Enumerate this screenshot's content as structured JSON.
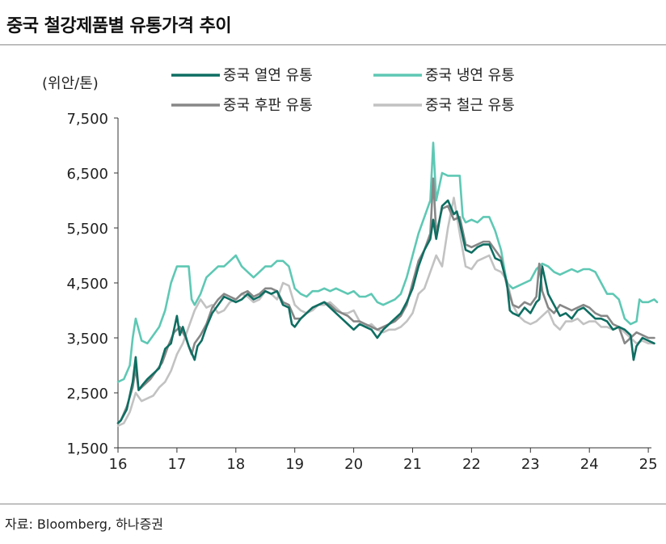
{
  "title": "중국 철강제품별 유통가격 추이",
  "source": "자료: Bloomberg, 하나증권",
  "chart_data": {
    "type": "line",
    "title": "중국 철강제품별 유통가격 추이",
    "ylabel": "(위안/톤)",
    "xlabel": "",
    "ylim": [
      1500,
      7500
    ],
    "yticks": [
      1500,
      2500,
      3500,
      4500,
      5500,
      6500,
      7500
    ],
    "ytick_labels": [
      "1,500",
      "2,500",
      "3,500",
      "4,500",
      "5,500",
      "6,500",
      "7,500"
    ],
    "xlim": [
      16,
      25.15
    ],
    "xticks": [
      16,
      17,
      18,
      19,
      20,
      21,
      22,
      23,
      24,
      25
    ],
    "xtick_labels": [
      "16",
      "17",
      "18",
      "19",
      "20",
      "21",
      "22",
      "23",
      "24",
      "25"
    ],
    "grid": false,
    "legend_position": "top",
    "series": [
      {
        "name": "중국 열연 유통",
        "color": "#0e6e62",
        "x": [
          16.0,
          16.05,
          16.15,
          16.25,
          16.3,
          16.35,
          16.42,
          16.5,
          16.6,
          16.7,
          16.8,
          16.9,
          17.0,
          17.05,
          17.1,
          17.2,
          17.3,
          17.35,
          17.42,
          17.5,
          17.6,
          17.7,
          17.8,
          17.9,
          18.0,
          18.1,
          18.2,
          18.3,
          18.4,
          18.5,
          18.6,
          18.7,
          18.8,
          18.9,
          18.95,
          19.0,
          19.1,
          19.2,
          19.3,
          19.4,
          19.5,
          19.6,
          19.7,
          19.8,
          19.9,
          20.0,
          20.1,
          20.2,
          20.3,
          20.4,
          20.5,
          20.6,
          20.7,
          20.8,
          20.9,
          21.0,
          21.1,
          21.2,
          21.3,
          21.35,
          21.4,
          21.5,
          21.6,
          21.7,
          21.75,
          21.8,
          21.9,
          22.0,
          22.1,
          22.2,
          22.3,
          22.4,
          22.5,
          22.6,
          22.65,
          22.7,
          22.8,
          22.9,
          23.0,
          23.1,
          23.15,
          23.2,
          23.3,
          23.4,
          23.5,
          23.6,
          23.7,
          23.8,
          23.9,
          24.0,
          24.1,
          24.2,
          24.3,
          24.4,
          24.5,
          24.6,
          24.7,
          24.75,
          24.8,
          24.9,
          25.0,
          25.1
        ],
        "y": [
          1950,
          2000,
          2200,
          2700,
          3150,
          2550,
          2650,
          2750,
          2850,
          2950,
          3300,
          3400,
          3900,
          3550,
          3700,
          3350,
          3100,
          3350,
          3450,
          3700,
          3950,
          4100,
          4250,
          4200,
          4150,
          4200,
          4300,
          4200,
          4250,
          4350,
          4300,
          4350,
          4100,
          4050,
          3750,
          3700,
          3850,
          3950,
          4050,
          4100,
          4150,
          4050,
          3950,
          3850,
          3750,
          3650,
          3750,
          3700,
          3650,
          3500,
          3650,
          3750,
          3850,
          3950,
          4150,
          4400,
          4800,
          5100,
          5300,
          5650,
          5300,
          5900,
          6000,
          5750,
          5800,
          5600,
          5100,
          5050,
          5150,
          5200,
          5200,
          4950,
          4900,
          4500,
          4000,
          3950,
          3900,
          4050,
          3950,
          4150,
          4200,
          4800,
          4300,
          4100,
          3900,
          3950,
          3850,
          4000,
          4050,
          3950,
          3850,
          3850,
          3800,
          3650,
          3700,
          3650,
          3550,
          3100,
          3350,
          3500,
          3450,
          3400
        ]
      },
      {
        "name": "중국 냉연 유통",
        "color": "#5ec8b4",
        "x": [
          16.0,
          16.1,
          16.2,
          16.25,
          16.3,
          16.4,
          16.5,
          16.6,
          16.7,
          16.8,
          16.9,
          17.0,
          17.05,
          17.2,
          17.25,
          17.3,
          17.4,
          17.5,
          17.6,
          17.7,
          17.8,
          17.9,
          18.0,
          18.1,
          18.2,
          18.3,
          18.4,
          18.5,
          18.6,
          18.7,
          18.8,
          18.9,
          19.0,
          19.1,
          19.2,
          19.3,
          19.4,
          19.5,
          19.6,
          19.7,
          19.8,
          19.9,
          20.0,
          20.1,
          20.2,
          20.3,
          20.4,
          20.5,
          20.6,
          20.7,
          20.8,
          20.9,
          21.0,
          21.1,
          21.2,
          21.3,
          21.35,
          21.4,
          21.5,
          21.6,
          21.7,
          21.8,
          21.85,
          21.9,
          22.0,
          22.1,
          22.2,
          22.3,
          22.4,
          22.5,
          22.6,
          22.7,
          22.8,
          22.9,
          23.0,
          23.1,
          23.2,
          23.3,
          23.4,
          23.5,
          23.6,
          23.7,
          23.8,
          23.9,
          24.0,
          24.1,
          24.2,
          24.3,
          24.4,
          24.5,
          24.6,
          24.7,
          24.8,
          24.85,
          24.9,
          25.0,
          25.1,
          25.15
        ],
        "y": [
          2700,
          2750,
          3000,
          3500,
          3850,
          3450,
          3400,
          3550,
          3700,
          4000,
          4500,
          4800,
          4800,
          4800,
          4200,
          4100,
          4300,
          4600,
          4700,
          4800,
          4800,
          4900,
          5000,
          4800,
          4700,
          4600,
          4700,
          4800,
          4800,
          4900,
          4900,
          4800,
          4400,
          4300,
          4250,
          4350,
          4350,
          4400,
          4350,
          4400,
          4350,
          4300,
          4350,
          4250,
          4250,
          4300,
          4150,
          4100,
          4150,
          4200,
          4300,
          4600,
          5000,
          5400,
          5700,
          6000,
          7050,
          6000,
          6500,
          6450,
          6450,
          6450,
          5700,
          5600,
          5650,
          5600,
          5700,
          5700,
          5450,
          5100,
          4500,
          4400,
          4450,
          4500,
          4550,
          4750,
          4850,
          4800,
          4700,
          4650,
          4700,
          4750,
          4700,
          4750,
          4750,
          4700,
          4500,
          4300,
          4300,
          4200,
          3850,
          3750,
          3800,
          4200,
          4150,
          4150,
          4200,
          4150
        ]
      },
      {
        "name": "중국 후판 유통",
        "color": "#878787",
        "x": [
          16.0,
          16.05,
          16.15,
          16.25,
          16.3,
          16.35,
          16.45,
          16.55,
          16.65,
          16.75,
          16.85,
          16.95,
          17.05,
          17.15,
          17.25,
          17.3,
          17.4,
          17.5,
          17.6,
          17.7,
          17.8,
          17.9,
          18.0,
          18.1,
          18.2,
          18.3,
          18.4,
          18.5,
          18.6,
          18.7,
          18.8,
          18.9,
          19.0,
          19.1,
          19.2,
          19.3,
          19.4,
          19.5,
          19.6,
          19.7,
          19.8,
          19.9,
          20.0,
          20.1,
          20.2,
          20.3,
          20.4,
          20.5,
          20.6,
          20.7,
          20.8,
          20.9,
          21.0,
          21.1,
          21.2,
          21.3,
          21.35,
          21.4,
          21.5,
          21.6,
          21.7,
          21.8,
          21.9,
          22.0,
          22.1,
          22.2,
          22.3,
          22.4,
          22.5,
          22.6,
          22.7,
          22.8,
          22.9,
          23.0,
          23.1,
          23.15,
          23.2,
          23.3,
          23.4,
          23.5,
          23.6,
          23.7,
          23.8,
          23.9,
          24.0,
          24.1,
          24.2,
          24.3,
          24.4,
          24.5,
          24.6,
          24.7,
          24.8,
          24.9,
          25.0,
          25.1
        ],
        "y": [
          1950,
          2000,
          2250,
          2600,
          2950,
          2550,
          2650,
          2750,
          2900,
          3050,
          3350,
          3600,
          3700,
          3500,
          3200,
          3400,
          3550,
          3750,
          4050,
          4200,
          4300,
          4250,
          4200,
          4300,
          4350,
          4250,
          4300,
          4400,
          4400,
          4350,
          4150,
          4100,
          3850,
          3850,
          3950,
          4050,
          4100,
          4150,
          4100,
          4000,
          3950,
          3900,
          3800,
          3800,
          3750,
          3700,
          3650,
          3700,
          3750,
          3800,
          3900,
          4100,
          4500,
          4900,
          5100,
          5400,
          6400,
          5400,
          5850,
          5900,
          5650,
          5700,
          5200,
          5150,
          5200,
          5250,
          5250,
          5100,
          4950,
          4450,
          4100,
          4050,
          4150,
          4100,
          4250,
          4850,
          4350,
          4050,
          3950,
          4100,
          4050,
          4000,
          4050,
          4100,
          4050,
          3950,
          3900,
          3900,
          3750,
          3700,
          3400,
          3500,
          3600,
          3550,
          3500,
          3500
        ]
      },
      {
        "name": "중국 철근 유통",
        "color": "#c2c2c2",
        "x": [
          16.0,
          16.1,
          16.2,
          16.3,
          16.4,
          16.5,
          16.6,
          16.7,
          16.8,
          16.9,
          17.0,
          17.1,
          17.2,
          17.3,
          17.4,
          17.5,
          17.6,
          17.7,
          17.8,
          17.9,
          18.0,
          18.1,
          18.2,
          18.3,
          18.4,
          18.5,
          18.6,
          18.7,
          18.8,
          18.9,
          19.0,
          19.1,
          19.2,
          19.3,
          19.4,
          19.5,
          19.6,
          19.7,
          19.8,
          19.9,
          20.0,
          20.1,
          20.2,
          20.3,
          20.4,
          20.5,
          20.6,
          20.7,
          20.8,
          20.9,
          21.0,
          21.1,
          21.2,
          21.3,
          21.4,
          21.5,
          21.6,
          21.7,
          21.8,
          21.9,
          22.0,
          22.1,
          22.2,
          22.3,
          22.4,
          22.5,
          22.6,
          22.7,
          22.8,
          22.9,
          23.0,
          23.1,
          23.2,
          23.3,
          23.4,
          23.5,
          23.6,
          23.7,
          23.8,
          23.9,
          24.0,
          24.1,
          24.2,
          24.3,
          24.4,
          24.5,
          24.6,
          24.7,
          24.8,
          24.9,
          25.0,
          25.1
        ],
        "y": [
          1900,
          1950,
          2150,
          2500,
          2350,
          2400,
          2450,
          2600,
          2700,
          2900,
          3200,
          3400,
          3700,
          4000,
          4200,
          4050,
          4100,
          3950,
          4000,
          4150,
          4200,
          4300,
          4250,
          4150,
          4200,
          4350,
          4300,
          4200,
          4500,
          4450,
          4100,
          4000,
          3950,
          4000,
          4100,
          4100,
          4150,
          4050,
          3950,
          3950,
          4000,
          3800,
          3700,
          3750,
          3650,
          3600,
          3650,
          3650,
          3700,
          3800,
          3950,
          4300,
          4400,
          4700,
          5000,
          4800,
          5500,
          6050,
          5400,
          4800,
          4750,
          4900,
          4950,
          5000,
          4750,
          4700,
          4550,
          4100,
          3900,
          3800,
          3750,
          3800,
          3900,
          4000,
          3750,
          3650,
          3800,
          3800,
          3850,
          3750,
          3800,
          3800,
          3700,
          3700,
          3650,
          3700,
          3600,
          3500,
          3400,
          3450,
          3400,
          3400
        ]
      }
    ]
  }
}
